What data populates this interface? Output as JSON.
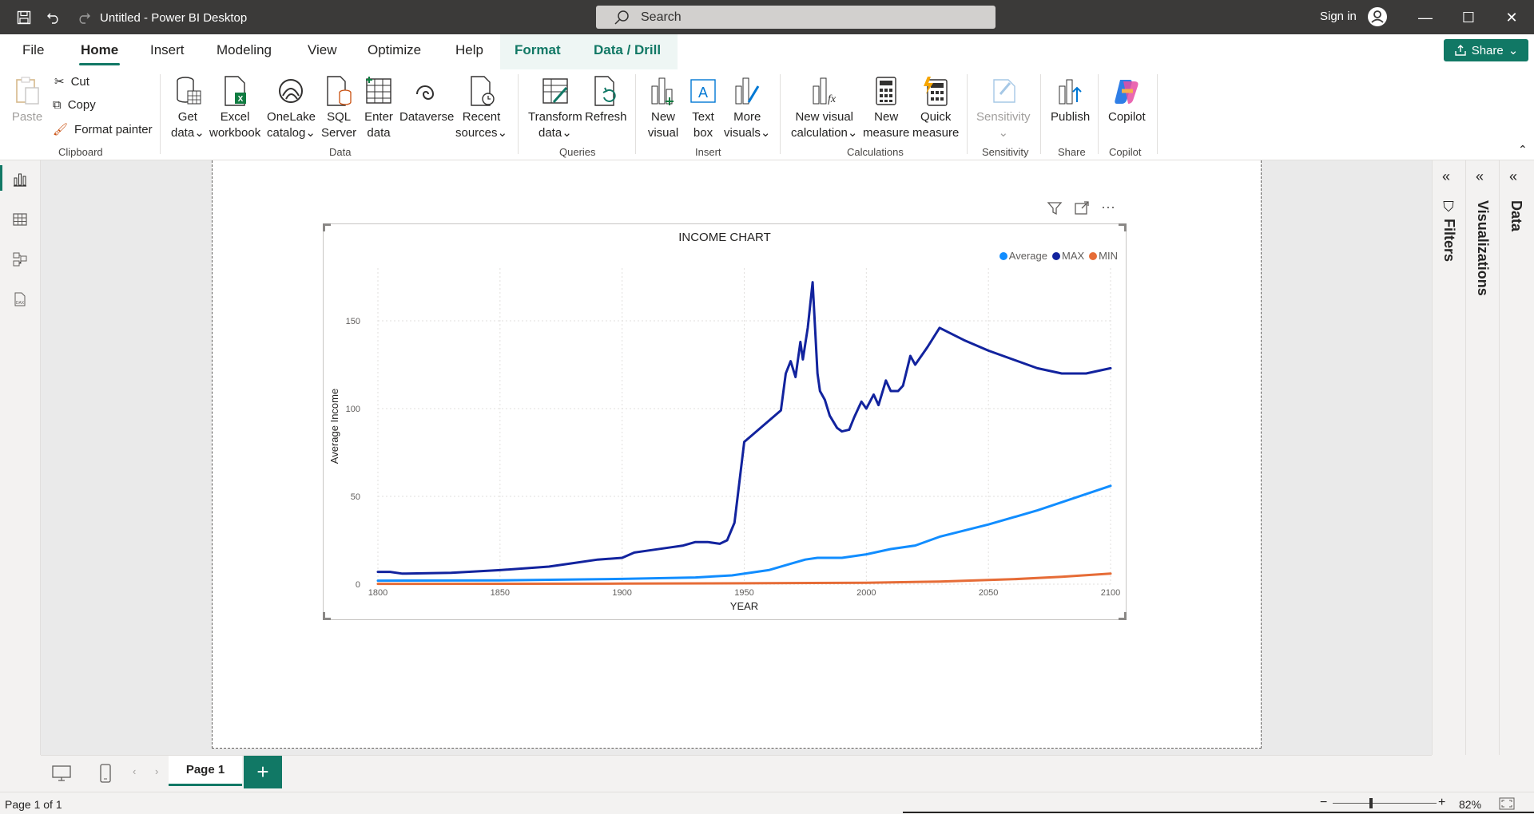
{
  "app": {
    "title": "Untitled - Power BI Desktop",
    "search_placeholder": "Search",
    "sign_in": "Sign in"
  },
  "tabs": [
    "File",
    "Home",
    "Insert",
    "Modeling",
    "View",
    "Optimize",
    "Help",
    "Format",
    "Data / Drill"
  ],
  "share_label": "Share",
  "ribbon": {
    "clipboard": {
      "paste": "Paste",
      "cut": "Cut",
      "copy": "Copy",
      "format_painter": "Format painter",
      "group": "Clipboard"
    },
    "data": {
      "get_data": [
        "Get",
        "data"
      ],
      "excel": [
        "Excel",
        "workbook"
      ],
      "onelake": [
        "OneLake",
        "catalog"
      ],
      "sql": [
        "SQL",
        "Server"
      ],
      "enter": [
        "Enter",
        "data"
      ],
      "dataverse": [
        "Dataverse"
      ],
      "recent": [
        "Recent",
        "sources"
      ],
      "group": "Data"
    },
    "queries": {
      "transform": [
        "Transform",
        "data"
      ],
      "refresh": [
        "Refresh"
      ],
      "group": "Queries"
    },
    "insert": {
      "new_visual": [
        "New",
        "visual"
      ],
      "text_box": [
        "Text",
        "box"
      ],
      "more_visuals": [
        "More",
        "visuals"
      ],
      "group": "Insert"
    },
    "calculations": {
      "new_visual_calc": [
        "New visual",
        "calculation"
      ],
      "new_measure": [
        "New",
        "measure"
      ],
      "quick_measure": [
        "Quick",
        "measure"
      ],
      "group": "Calculations"
    },
    "sensitivity": {
      "label": "Sensitivity",
      "group": "Sensitivity"
    },
    "share": {
      "publish": "Publish",
      "group": "Share"
    },
    "copilot": {
      "label": "Copilot",
      "group": "Copilot"
    }
  },
  "panes": {
    "filters": "Filters",
    "visualizations": "Visualizations",
    "data": "Data"
  },
  "page_tab": "Page 1",
  "status": {
    "page": "Page 1 of 1",
    "zoom": "82%"
  },
  "chart_data": {
    "type": "line",
    "title": "INCOME CHART",
    "xlabel": "YEAR",
    "ylabel": "Average Income",
    "xlim": [
      1800,
      2100
    ],
    "ylim": [
      0,
      180
    ],
    "x_ticks": [
      1800,
      1850,
      1900,
      1950,
      2000,
      2050,
      2100
    ],
    "y_ticks": [
      0,
      50,
      100,
      150
    ],
    "legend_position": "top-right",
    "grid": true,
    "series": [
      {
        "name": "Average",
        "color": "#118DFF",
        "x": [
          1800,
          1850,
          1900,
          1930,
          1945,
          1960,
          1970,
          1975,
          1980,
          1990,
          2000,
          2010,
          2020,
          2030,
          2050,
          2070,
          2100
        ],
        "y": [
          2,
          2.2,
          3,
          3.8,
          5,
          8,
          12,
          14,
          15,
          15,
          17,
          20,
          22,
          27,
          34,
          42,
          56
        ]
      },
      {
        "name": "MAX",
        "color": "#12239E",
        "x": [
          1800,
          1805,
          1810,
          1830,
          1850,
          1870,
          1880,
          1890,
          1900,
          1905,
          1910,
          1920,
          1925,
          1930,
          1935,
          1940,
          1943,
          1946,
          1950,
          1965,
          1967,
          1969,
          1971,
          1973,
          1974,
          1976,
          1978,
          1980,
          1981,
          1983,
          1985,
          1988,
          1990,
          1993,
          1995,
          1998,
          2000,
          2003,
          2005,
          2008,
          2010,
          2013,
          2015,
          2018,
          2020,
          2025,
          2030,
          2040,
          2050,
          2070,
          2080,
          2090,
          2100
        ],
        "y": [
          7,
          7,
          6,
          6.5,
          8,
          10,
          12,
          14,
          15,
          18,
          19,
          21,
          22,
          24,
          24,
          23,
          25,
          35,
          81,
          99,
          120,
          127,
          118,
          138,
          128,
          146,
          172,
          120,
          110,
          105,
          96,
          89,
          87,
          88,
          95,
          104,
          100,
          108,
          102,
          116,
          110,
          110,
          113,
          130,
          125,
          135,
          146,
          139,
          133,
          123,
          120,
          120,
          123
        ]
      },
      {
        "name": "MIN",
        "color": "#E66C37",
        "x": [
          1800,
          1900,
          1950,
          2000,
          2030,
          2060,
          2080,
          2100
        ],
        "y": [
          0.2,
          0.3,
          0.5,
          0.8,
          1.5,
          2.8,
          4.2,
          6
        ]
      }
    ]
  }
}
